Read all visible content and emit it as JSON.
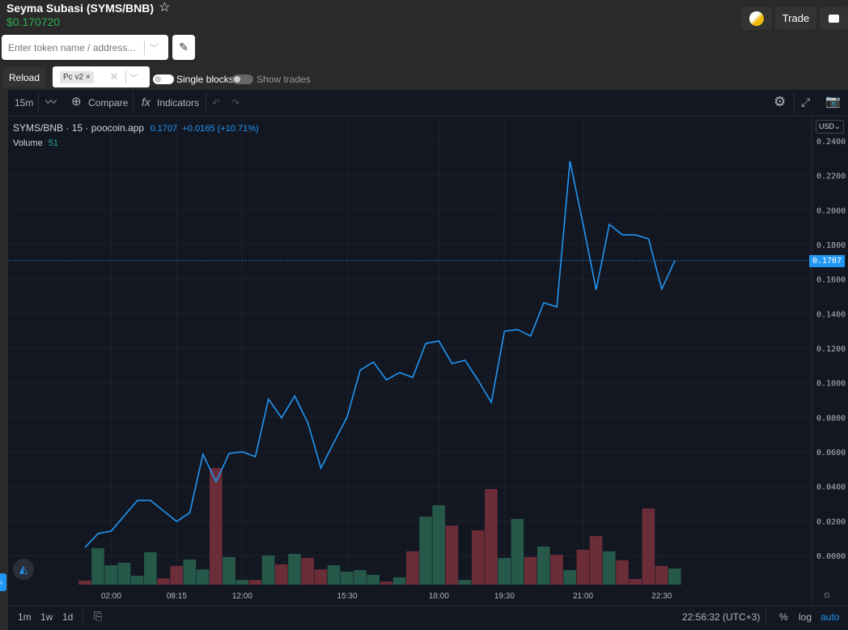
{
  "header": {
    "title": "Seyma Subasi (SYMS/BNB)",
    "price": "$0.170720",
    "trade_label": "Trade"
  },
  "search": {
    "placeholder": "Enter token name / address..."
  },
  "controls": {
    "reload_label": "Reload",
    "dex_tag": "Pc v2",
    "single_blocks_label": "Single blocks",
    "show_trades_label": "Show trades"
  },
  "toolbar": {
    "interval": "15m",
    "compare_label": "Compare",
    "indicators_label": "Indicators"
  },
  "legend": {
    "symbol": "SYMS/BNB",
    "interval": "15",
    "source": "poocoin.app",
    "last": "0.1707",
    "change": "+0.0165 (+10.71%)",
    "volume_label": "Volume",
    "volume_value": "51"
  },
  "currency": "USD",
  "last_price_label": "0.1707",
  "footer": {
    "ranges": [
      "1m",
      "1w",
      "1d"
    ],
    "clock": "22:56:32 (UTC+3)",
    "percent": "%",
    "log": "log",
    "auto": "auto"
  },
  "colors": {
    "line": "#2196f3",
    "up": "#26594a",
    "down": "#6b2d38",
    "price_green": "#2eae4f"
  },
  "chart_data": {
    "type": "line",
    "title": "SYMS/BNB 15m",
    "ylim": [
      0,
      0.24
    ],
    "yticks": [
      "0.2400",
      "0.2200",
      "0.2000",
      "0.1800",
      "0.1600",
      "0.1400",
      "0.1200",
      "0.1000",
      "0.0800",
      "0.0600",
      "0.0400",
      "0.0200",
      "0.0000"
    ],
    "xticks": [
      {
        "i": 2,
        "label": "02:00"
      },
      {
        "i": 7,
        "label": "08:15"
      },
      {
        "i": 12,
        "label": "12:00"
      },
      {
        "i": 20,
        "label": "15:30"
      },
      {
        "i": 27,
        "label": "18:00"
      },
      {
        "i": 32,
        "label": "19:30"
      },
      {
        "i": 38,
        "label": "21:00"
      },
      {
        "i": 44,
        "label": "22:30"
      }
    ],
    "price": [
      0.0047,
      0.0127,
      0.0141,
      0.023,
      0.0319,
      0.0319,
      0.0258,
      0.0197,
      0.0248,
      0.0586,
      0.0427,
      0.0591,
      0.06,
      0.0572,
      0.0905,
      0.0797,
      0.0923,
      0.0769,
      0.0506,
      0.0656,
      0.0802,
      0.1073,
      0.112,
      0.1017,
      0.1059,
      0.1031,
      0.1228,
      0.1242,
      0.1111,
      0.113,
      0.1013,
      0.0886,
      0.1298,
      0.1308,
      0.127,
      0.1463,
      0.1439,
      0.2283,
      0.1917,
      0.1538,
      0.1917,
      0.1856,
      0.1856,
      0.1833,
      0.1542,
      0.1707
    ],
    "volume": [
      13,
      115,
      61,
      69,
      28,
      102,
      20,
      59,
      79,
      48,
      367,
      87,
      15,
      15,
      92,
      64,
      97,
      84,
      48,
      61,
      41,
      46,
      31,
      10,
      23,
      105,
      214,
      250,
      186,
      15,
      171,
      301,
      84,
      207,
      87,
      120,
      94,
      46,
      110,
      153,
      105,
      77,
      18,
      240,
      59,
      51
    ],
    "volume_dir": [
      "d",
      "u",
      "u",
      "u",
      "u",
      "u",
      "d",
      "d",
      "u",
      "u",
      "d",
      "u",
      "u",
      "d",
      "u",
      "d",
      "u",
      "d",
      "d",
      "u",
      "u",
      "u",
      "u",
      "d",
      "u",
      "d",
      "u",
      "u",
      "d",
      "u",
      "d",
      "d",
      "u",
      "u",
      "d",
      "u",
      "d",
      "u",
      "d",
      "d",
      "u",
      "d",
      "d",
      "d",
      "d",
      "u"
    ]
  }
}
